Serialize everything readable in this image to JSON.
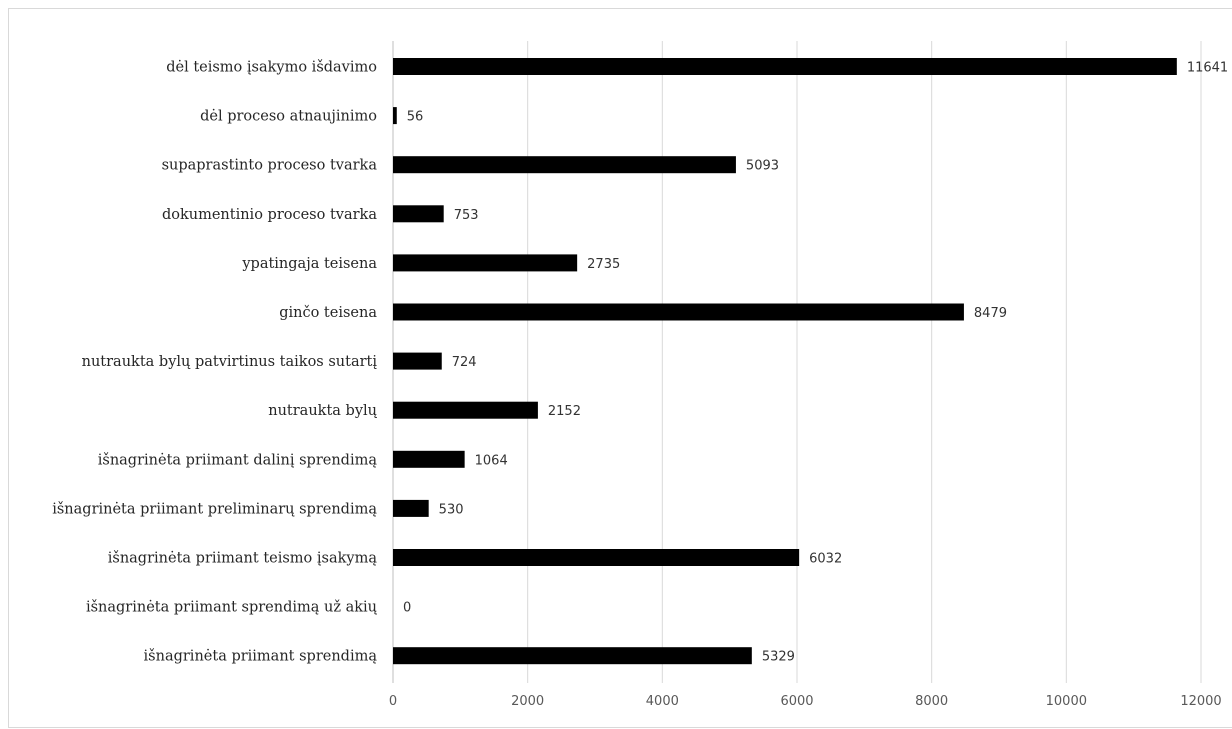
{
  "chart_data": {
    "type": "bar",
    "orientation": "horizontal",
    "title": "",
    "xlabel": "",
    "ylabel": "",
    "categories": [
      "dėl teismo įsakymo išdavimo",
      "dėl proceso atnaujinimo",
      "supaprastinto proceso tvarka",
      "dokumentinio proceso tvarka",
      "ypatingaja teisena",
      "ginčo teisena",
      "nutraukta bylų patvirtinus taikos sutartį",
      "nutraukta bylų",
      "išnagrinėta priimant dalinį sprendimą",
      "išnagrinėta priimant preliminarų sprendimą",
      "išnagrinėta priimant teismo įsakymą",
      "išnagrinėta priimant sprendimą už akių",
      "išnagrinėta priimant sprendimą"
    ],
    "values": [
      11641,
      56,
      5093,
      753,
      2735,
      8479,
      724,
      2152,
      1064,
      530,
      6032,
      0,
      5329
    ],
    "xlim": [
      0,
      12000
    ],
    "x_ticks": [
      "0",
      "2000",
      "4000",
      "6000",
      "8000",
      "10000",
      "12000"
    ],
    "grid": "vertical",
    "legend": "none",
    "bar_color": "#000000",
    "data_labels": true
  }
}
